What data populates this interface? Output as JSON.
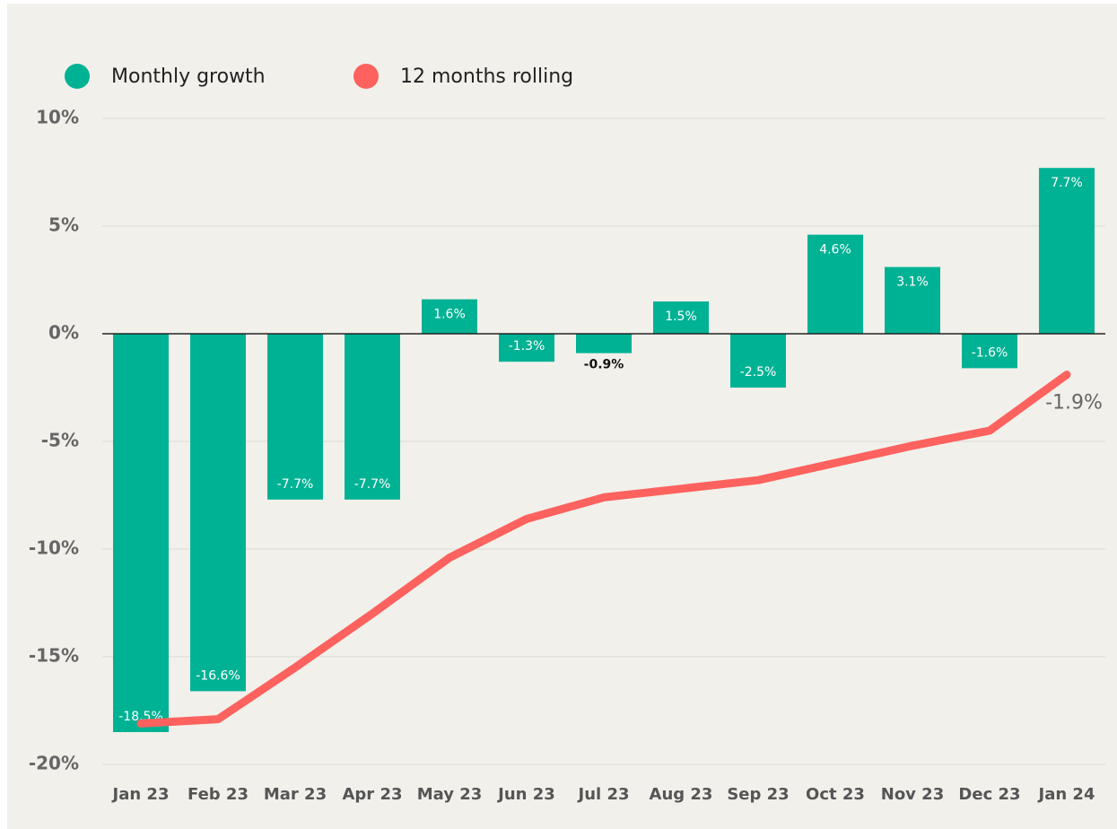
{
  "chart_data": {
    "type": "bar_line",
    "categories": [
      "Jan 23",
      "Feb 23",
      "Mar 23",
      "Apr 23",
      "May 23",
      "Jun 23",
      "Jul 23",
      "Aug 23",
      "Sep 23",
      "Oct 23",
      "Nov 23",
      "Dec 23",
      "Jan 24"
    ],
    "series": [
      {
        "name": "Monthly growth",
        "type": "bar",
        "color": "#00b294",
        "values": [
          -18.5,
          -16.6,
          -7.7,
          -7.7,
          1.6,
          -1.3,
          -0.9,
          1.5,
          -2.5,
          4.6,
          3.1,
          -1.6,
          7.7
        ],
        "value_labels": [
          "-18.5%",
          "-16.6%",
          "-7.7%",
          "-7.7%",
          "1.6%",
          "-1.3%",
          "-0.9%",
          "1.5%",
          "-2.5%",
          "4.6%",
          "3.1%",
          "-1.6%",
          "7.7%"
        ]
      },
      {
        "name": "12 months rolling",
        "type": "line",
        "color": "#fd625e",
        "values": [
          -18.1,
          -17.9,
          -15.5,
          -13.0,
          -10.4,
          -8.6,
          -7.6,
          -7.2,
          -6.8,
          -6.0,
          -5.2,
          -4.5,
          -1.9
        ],
        "value_labels": [
          null,
          null,
          null,
          null,
          null,
          null,
          null,
          null,
          null,
          null,
          null,
          null,
          "-1.9%"
        ]
      }
    ],
    "ylim": [
      -20,
      10
    ],
    "yticks": [
      {
        "value": -20,
        "label": "-20%"
      },
      {
        "value": -15,
        "label": "-15%"
      },
      {
        "value": -10,
        "label": "-10%"
      },
      {
        "value": -5,
        "label": "-5%"
      },
      {
        "value": 0,
        "label": "0%"
      },
      {
        "value": 5,
        "label": "5%"
      },
      {
        "value": 10,
        "label": "10%"
      }
    ],
    "grid": true,
    "legend": "top-left"
  }
}
